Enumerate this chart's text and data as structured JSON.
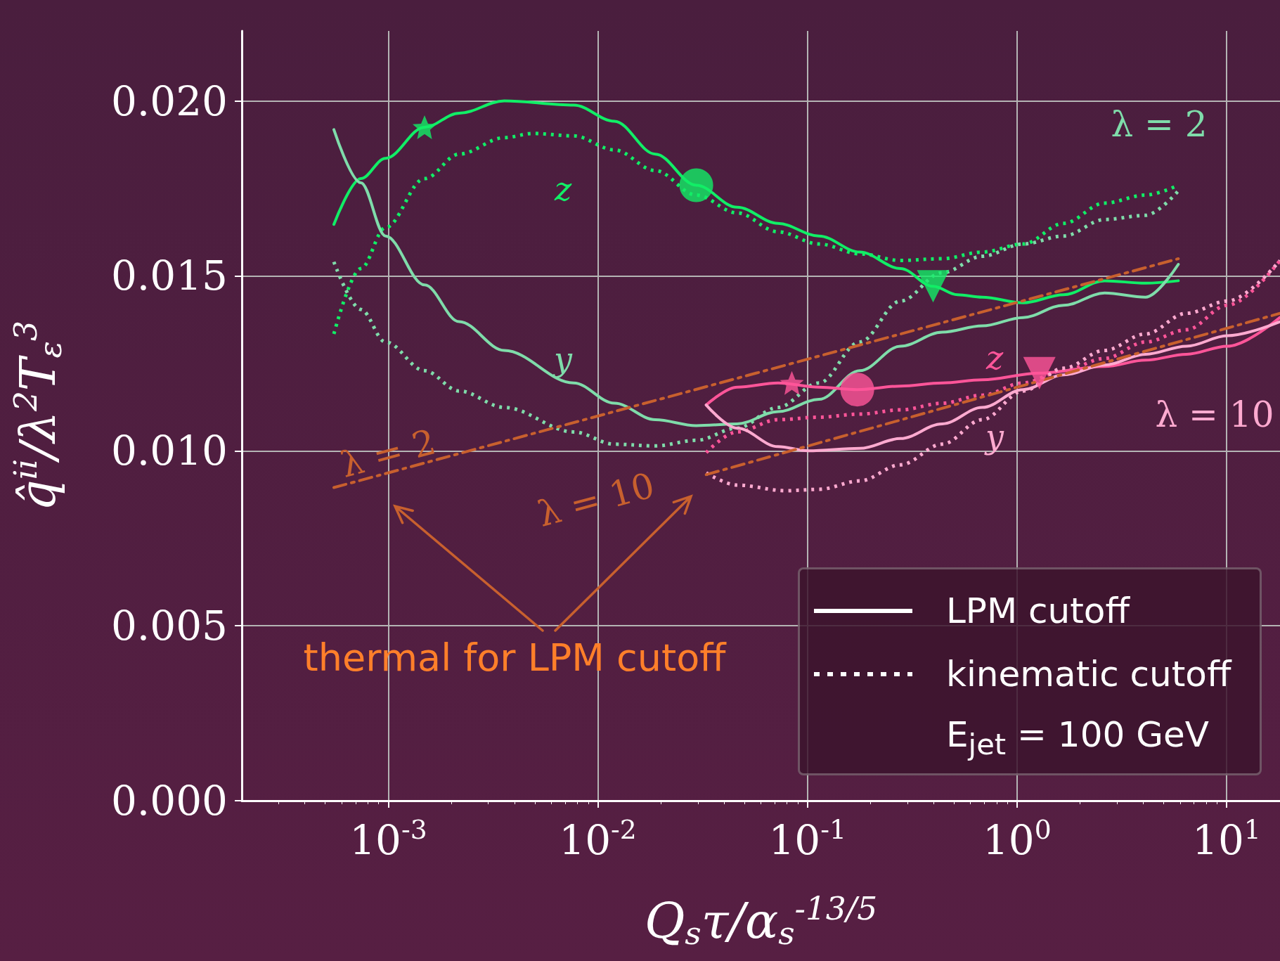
{
  "chart_data": {
    "type": "line",
    "xlabel": "Q$_{s}$τ/α$_{s}$$^{-13/5}$",
    "ylabel": "q̂$^{ii}$/λ$^{2}$T$_{ε}$$^{3}$",
    "log": "x",
    "grid": true,
    "xlim": [
      0.0002,
      18
    ],
    "xticks": [
      {
        "value": 0.001,
        "label": "10$^{-3}$"
      },
      {
        "value": 0.01,
        "label": "10$^{-2}$"
      },
      {
        "value": 0.1,
        "label": "10$^{-1}$"
      },
      {
        "value": 1,
        "label": "10$^{0}$"
      },
      {
        "value": 10,
        "label": "10$^{1}$"
      }
    ],
    "ylim": [
      0,
      0.022
    ],
    "yticks": [
      {
        "value": 0,
        "label": "0.000"
      },
      {
        "value": 0.005,
        "label": "0.005"
      },
      {
        "value": 0.01,
        "label": "0.010"
      },
      {
        "value": 0.015,
        "label": "0.015"
      },
      {
        "value": 0.02,
        "label": "0.020"
      }
    ],
    "series": [
      {
        "color": "#11ee66",
        "line_style": "solid",
        "x": [
          0.00055,
          0.00074,
          0.00097,
          0.00149,
          0.00218,
          0.00358,
          0.00767,
          0.012,
          0.0188,
          0.0295,
          0.0462,
          0.0724,
          0.1135,
          0.178,
          0.278,
          0.398,
          0.52,
          0.683,
          1.07,
          1.67,
          2.62,
          4.11,
          5.89
        ],
        "values": [
          0.01647,
          0.01778,
          0.01836,
          0.01925,
          0.01965,
          0.02,
          0.01988,
          0.01942,
          0.01848,
          0.01759,
          0.01696,
          0.0165,
          0.01614,
          0.01568,
          0.01521,
          0.0147,
          0.01446,
          0.01439,
          0.01423,
          0.01446,
          0.01486,
          0.01479,
          0.01486
        ]
      },
      {
        "color": "#11ee66",
        "line_style": "dotted",
        "x": [
          0.00055,
          0.00074,
          0.00097,
          0.00149,
          0.00218,
          0.00358,
          0.0049,
          0.00767,
          0.012,
          0.0188,
          0.0295,
          0.0462,
          0.0724,
          0.1135,
          0.178,
          0.278,
          0.44,
          0.683,
          1.07,
          1.67,
          2.62,
          4.11,
          5.89
        ],
        "values": [
          0.01334,
          0.01521,
          0.01638,
          0.01778,
          0.01848,
          0.01895,
          0.01907,
          0.019,
          0.0186,
          0.01801,
          0.01731,
          0.0168,
          0.01626,
          0.01591,
          0.01563,
          0.01544,
          0.01549,
          0.01568,
          0.01591,
          0.0165,
          0.01708,
          0.01731,
          0.01759
        ]
      },
      {
        "color": "#7fdcaa",
        "line_style": "solid",
        "x": [
          0.00055,
          0.00074,
          0.00097,
          0.00149,
          0.00218,
          0.00358,
          0.00767,
          0.012,
          0.0188,
          0.0295,
          0.0462,
          0.0724,
          0.1135,
          0.178,
          0.278,
          0.44,
          0.683,
          1.07,
          1.67,
          2.62,
          4.11,
          5.89
        ],
        "values": [
          0.01918,
          0.01766,
          0.01614,
          0.01474,
          0.01369,
          0.01287,
          0.01194,
          0.01136,
          0.01089,
          0.01072,
          0.01077,
          0.01112,
          0.01147,
          0.01229,
          0.01299,
          0.01339,
          0.01357,
          0.01381,
          0.01416,
          0.01451,
          0.01439,
          0.01533
        ]
      },
      {
        "color": "#7fdcaa",
        "line_style": "dotted",
        "x": [
          0.00055,
          0.00074,
          0.00097,
          0.00149,
          0.00218,
          0.00358,
          0.00767,
          0.012,
          0.0188,
          0.0295,
          0.0462,
          0.0724,
          0.1135,
          0.178,
          0.278,
          0.44,
          0.683,
          1.07,
          1.67,
          2.62,
          4.11,
          5.89
        ],
        "values": [
          0.0154,
          0.01404,
          0.01311,
          0.01229,
          0.01171,
          0.01124,
          0.01054,
          0.01019,
          0.01014,
          0.0103,
          0.01065,
          0.01124,
          0.01194,
          0.01311,
          0.01428,
          0.01509,
          0.01556,
          0.01591,
          0.01614,
          0.01661,
          0.01673,
          0.01743
        ]
      },
      {
        "color": "#ff5599",
        "line_style": "solid",
        "x": [
          0.0329,
          0.0462,
          0.0724,
          0.1135,
          0.173,
          0.278,
          0.44,
          0.683,
          1.28,
          2.62,
          4.11,
          6.44,
          10.1,
          18
        ],
        "values": [
          0.01131,
          0.01182,
          0.01194,
          0.01182,
          0.01175,
          0.01185,
          0.01194,
          0.01203,
          0.01222,
          0.01241,
          0.01259,
          0.01276,
          0.01299,
          0.01381
        ]
      },
      {
        "color": "#ff5599",
        "line_style": "dotted",
        "x": [
          0.0329,
          0.0462,
          0.0724,
          0.1135,
          0.178,
          0.278,
          0.44,
          0.683,
          1.07,
          1.67,
          2.62,
          4.11,
          6.44,
          10.1,
          18
        ],
        "values": [
          0.00995,
          0.01054,
          0.01089,
          0.01096,
          0.01105,
          0.01117,
          0.01136,
          0.01159,
          0.01194,
          0.01229,
          0.01264,
          0.01311,
          0.01346,
          0.01416,
          0.01544
        ]
      },
      {
        "color": "#ffaad0",
        "line_style": "solid",
        "x": [
          0.0329,
          0.0462,
          0.0724,
          0.101,
          0.178,
          0.278,
          0.44,
          0.683,
          1.07,
          1.67,
          2.62,
          4.11,
          6.44,
          10.1,
          18
        ],
        "values": [
          0.01131,
          0.01065,
          0.01012,
          0.01,
          0.01007,
          0.01035,
          0.01077,
          0.01124,
          0.01175,
          0.01217,
          0.01245,
          0.01276,
          0.01299,
          0.01329,
          0.01369
        ]
      },
      {
        "color": "#ffaad0",
        "line_style": "dotted",
        "x": [
          0.0329,
          0.0462,
          0.079,
          0.1135,
          0.178,
          0.278,
          0.44,
          0.683,
          1.07,
          1.67,
          2.62,
          4.11,
          6.44,
          10.1,
          18
        ],
        "values": [
          0.00937,
          0.00902,
          0.00886,
          0.0089,
          0.00914,
          0.0096,
          0.01019,
          0.01089,
          0.01171,
          0.01236,
          0.01287,
          0.01334,
          0.01393,
          0.01428,
          0.01544
        ]
      },
      {
        "color": "#c8602e",
        "line_style": "dashed",
        "x": [
          0.00055,
          5.89
        ],
        "values": [
          0.00895,
          0.01549
        ]
      },
      {
        "color": "#c8602e",
        "line_style": "dashed",
        "x": [
          0.0329,
          18
        ],
        "values": [
          0.00932,
          0.01393
        ]
      },
      {
        "type": "scatter",
        "marker": "star",
        "x": [
          0.00149,
          0.0843
        ],
        "values": [
          0.01925,
          0.01194
        ],
        "colors": [
          "#11ee66",
          "#ff5599"
        ]
      },
      {
        "type": "scatter",
        "marker": "circle",
        "x": [
          0.0295,
          0.173
        ],
        "values": [
          0.01759,
          0.01175
        ],
        "colors": [
          "#11ee66",
          "#ff5599"
        ]
      },
      {
        "type": "scatter",
        "marker": "triangle",
        "x": [
          0.398,
          1.28
        ],
        "values": [
          0.0147,
          0.01222
        ],
        "colors": [
          "#11ee66",
          "#ff5599"
        ]
      }
    ],
    "annotations": [
      "z",
      "y",
      "λ = 2",
      "z",
      "y",
      "λ = 10",
      "λ = 2",
      "λ = 10",
      "thermal for LPM cutoff",
      "LPM cutoff",
      "kinematic cutoff",
      "E$_{jet}$ = 100 GeV"
    ]
  }
}
